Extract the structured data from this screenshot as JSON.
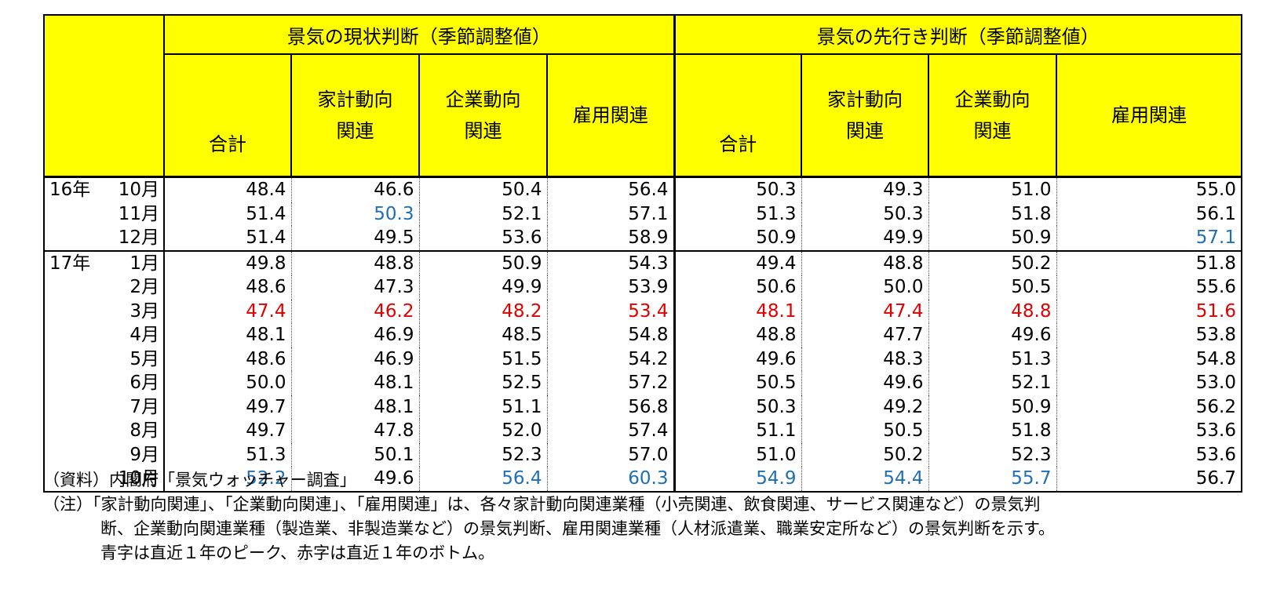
{
  "header": {
    "group1_title": "景気の現状判断（季節調整値）",
    "group2_title": "景気の先行き判断（季節調整値）",
    "columns": [
      "合計",
      "家計動向\n関連",
      "企業動向\n関連",
      "雇用関連",
      "合計",
      "家計動向\n関連",
      "企業動向\n関連",
      "雇用関連"
    ]
  },
  "rows": [
    {
      "year": "16年",
      "month": "10月",
      "values": [
        "48.4",
        "46.6",
        "50.4",
        "56.4",
        "50.3",
        "49.3",
        "51.0",
        "55.0"
      ],
      "colors": [
        "",
        "",
        "",
        "",
        "",
        "",
        "",
        ""
      ]
    },
    {
      "year": "",
      "month": "11月",
      "values": [
        "51.4",
        "50.3",
        "52.1",
        "57.1",
        "51.3",
        "50.3",
        "51.8",
        "56.1"
      ],
      "colors": [
        "",
        "blue",
        "",
        "",
        "",
        "",
        "",
        ""
      ]
    },
    {
      "year": "",
      "month": "12月",
      "values": [
        "51.4",
        "49.5",
        "53.6",
        "58.9",
        "50.9",
        "49.9",
        "50.9",
        "57.1"
      ],
      "colors": [
        "",
        "",
        "",
        "",
        "",
        "",
        "",
        "blue"
      ]
    },
    {
      "year": "17年",
      "month": "1月",
      "values": [
        "49.8",
        "48.8",
        "50.9",
        "54.3",
        "49.4",
        "48.8",
        "50.2",
        "51.8"
      ],
      "colors": [
        "",
        "",
        "",
        "",
        "",
        "",
        "",
        ""
      ]
    },
    {
      "year": "",
      "month": "2月",
      "values": [
        "48.6",
        "47.3",
        "49.9",
        "53.9",
        "50.6",
        "50.0",
        "50.5",
        "55.6"
      ],
      "colors": [
        "",
        "",
        "",
        "",
        "",
        "",
        "",
        ""
      ]
    },
    {
      "year": "",
      "month": "3月",
      "values": [
        "47.4",
        "46.2",
        "48.2",
        "53.4",
        "48.1",
        "47.4",
        "48.8",
        "51.6"
      ],
      "colors": [
        "red",
        "red",
        "red",
        "red",
        "red",
        "red",
        "red",
        "red"
      ]
    },
    {
      "year": "",
      "month": "4月",
      "values": [
        "48.1",
        "46.9",
        "48.5",
        "54.8",
        "48.8",
        "47.7",
        "49.6",
        "53.8"
      ],
      "colors": [
        "",
        "",
        "",
        "",
        "",
        "",
        "",
        ""
      ]
    },
    {
      "year": "",
      "month": "5月",
      "values": [
        "48.6",
        "46.9",
        "51.5",
        "54.2",
        "49.6",
        "48.3",
        "51.3",
        "54.8"
      ],
      "colors": [
        "",
        "",
        "",
        "",
        "",
        "",
        "",
        ""
      ]
    },
    {
      "year": "",
      "month": "6月",
      "values": [
        "50.0",
        "48.1",
        "52.5",
        "57.2",
        "50.5",
        "49.6",
        "52.1",
        "53.0"
      ],
      "colors": [
        "",
        "",
        "",
        "",
        "",
        "",
        "",
        ""
      ]
    },
    {
      "year": "",
      "month": "7月",
      "values": [
        "49.7",
        "48.1",
        "51.1",
        "56.8",
        "50.3",
        "49.2",
        "50.9",
        "56.2"
      ],
      "colors": [
        "",
        "",
        "",
        "",
        "",
        "",
        "",
        ""
      ]
    },
    {
      "year": "",
      "month": "8月",
      "values": [
        "49.7",
        "47.8",
        "52.0",
        "57.4",
        "51.1",
        "50.5",
        "51.8",
        "53.6"
      ],
      "colors": [
        "",
        "",
        "",
        "",
        "",
        "",
        "",
        ""
      ]
    },
    {
      "year": "",
      "month": "9月",
      "values": [
        "51.3",
        "50.1",
        "52.3",
        "57.0",
        "51.0",
        "50.2",
        "52.3",
        "53.6"
      ],
      "colors": [
        "",
        "",
        "",
        "",
        "",
        "",
        "",
        ""
      ]
    },
    {
      "year": "",
      "month": "10月",
      "values": [
        "52.2",
        "49.6",
        "56.4",
        "60.3",
        "54.9",
        "54.4",
        "55.7",
        "56.7"
      ],
      "colors": [
        "blue",
        "",
        "blue",
        "blue",
        "blue",
        "blue",
        "blue",
        ""
      ]
    }
  ],
  "notes": {
    "source": "（資料）内閣府「景気ウォッチャー調査」",
    "note_line1": "（注）「家計動向関連」、「企業動向関連」、「雇用関連」は、各々家計動向関連業種（小売関連、飲食関連、サービス関連など）の景気判",
    "note_line2": "断、企業動向関連業種（製造業、非製造業など）の景気判断、雇用関連業種（人材派遣業、職業安定所など）の景気判断を示す。",
    "note_line3": "青字は直近１年のピーク、赤字は直近１年のボトム。"
  },
  "colors": {
    "header_bg": "#ffff00",
    "peak_blue": "#1f6fb5",
    "bottom_red": "#e00000"
  }
}
